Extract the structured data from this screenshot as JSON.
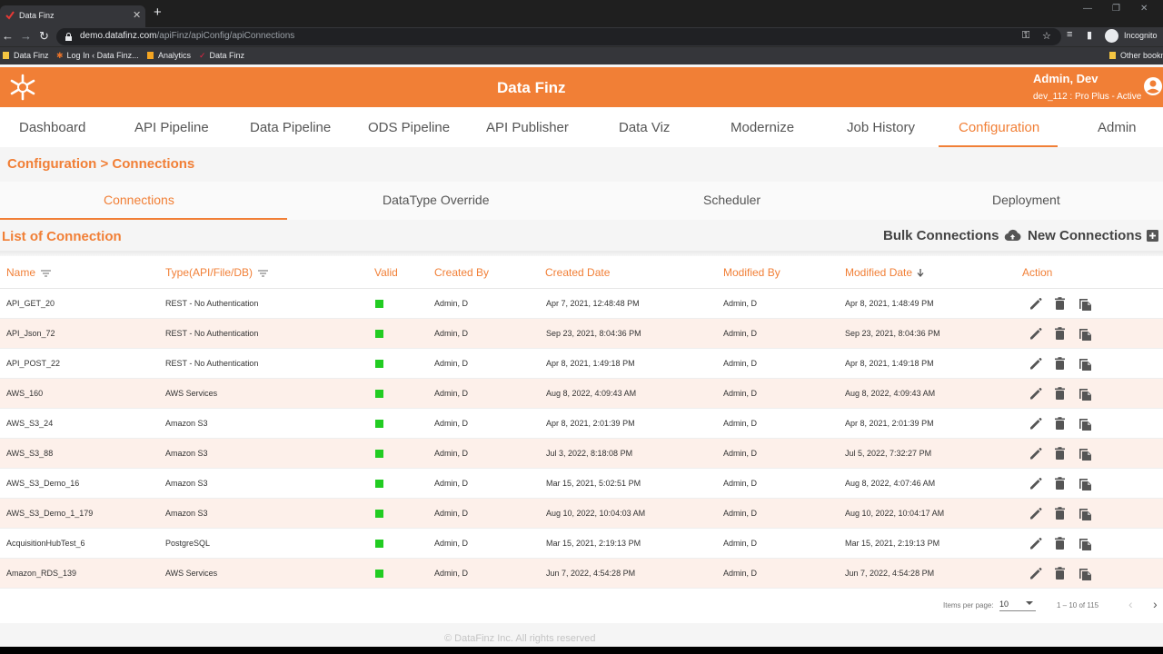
{
  "browser": {
    "tab_title": "Data Finz",
    "tab_close": "✕",
    "new_tab": "+",
    "url_host": "demo.datafinz.com",
    "url_path": "/apiFinz/apiConfig/apiConnections",
    "incognito_label": "Incognito",
    "bookmarks": [
      "Data Finz",
      "Log In ‹ Data Finz...",
      "Analytics",
      "Data Finz"
    ],
    "other_bookmarks": "Other bookm"
  },
  "header": {
    "title": "Data Finz",
    "user_name": "Admin, Dev",
    "user_plan": "dev_112 : Pro Plus - Active",
    "accent_color": "#f17f36"
  },
  "nav": {
    "items": [
      "Dashboard",
      "API Pipeline",
      "Data Pipeline",
      "ODS Pipeline",
      "API Publisher",
      "Data Viz",
      "Modernize",
      "Job History",
      "Configuration",
      "Admin"
    ],
    "active": "Configuration"
  },
  "breadcrumb": "Configuration > Connections",
  "sub_tabs": {
    "items": [
      "Connections",
      "DataType Override",
      "Scheduler",
      "Deployment"
    ],
    "active": "Connections"
  },
  "list": {
    "title": "List of Connection",
    "bulk_label": "Bulk Connections",
    "new_label": "New Connections"
  },
  "table": {
    "headers": [
      "Name",
      "Type(API/File/DB)",
      "Valid",
      "Created By",
      "Created Date",
      "Modified By",
      "Modified Date",
      "Action"
    ],
    "rows": [
      {
        "name": "API_GET_20",
        "type": "REST - No Authentication",
        "valid": true,
        "created_by": "Admin, D",
        "created_date": "Apr 7, 2021, 12:48:48 PM",
        "modified_by": "Admin, D",
        "modified_date": "Apr 8, 2021, 1:48:49 PM"
      },
      {
        "name": "API_Json_72",
        "type": "REST - No Authentication",
        "valid": true,
        "created_by": "Admin, D",
        "created_date": "Sep 23, 2021, 8:04:36 PM",
        "modified_by": "Admin, D",
        "modified_date": "Sep 23, 2021, 8:04:36 PM"
      },
      {
        "name": "API_POST_22",
        "type": "REST - No Authentication",
        "valid": true,
        "created_by": "Admin, D",
        "created_date": "Apr 8, 2021, 1:49:18 PM",
        "modified_by": "Admin, D",
        "modified_date": "Apr 8, 2021, 1:49:18 PM"
      },
      {
        "name": "AWS_160",
        "type": "AWS Services",
        "valid": true,
        "created_by": "Admin, D",
        "created_date": "Aug 8, 2022, 4:09:43 AM",
        "modified_by": "Admin, D",
        "modified_date": "Aug 8, 2022, 4:09:43 AM"
      },
      {
        "name": "AWS_S3_24",
        "type": "Amazon S3",
        "valid": true,
        "created_by": "Admin, D",
        "created_date": "Apr 8, 2021, 2:01:39 PM",
        "modified_by": "Admin, D",
        "modified_date": "Apr 8, 2021, 2:01:39 PM"
      },
      {
        "name": "AWS_S3_88",
        "type": "Amazon S3",
        "valid": true,
        "created_by": "Admin, D",
        "created_date": "Jul 3, 2022, 8:18:08 PM",
        "modified_by": "Admin, D",
        "modified_date": "Jul 5, 2022, 7:32:27 PM"
      },
      {
        "name": "AWS_S3_Demo_16",
        "type": "Amazon S3",
        "valid": true,
        "created_by": "Admin, D",
        "created_date": "Mar 15, 2021, 5:02:51 PM",
        "modified_by": "Admin, D",
        "modified_date": "Aug 8, 2022, 4:07:46 AM"
      },
      {
        "name": "AWS_S3_Demo_1_179",
        "type": "Amazon S3",
        "valid": true,
        "created_by": "Admin, D",
        "created_date": "Aug 10, 2022, 10:04:03 AM",
        "modified_by": "Admin, D",
        "modified_date": "Aug 10, 2022, 10:04:17 AM"
      },
      {
        "name": "AcquisitionHubTest_6",
        "type": "PostgreSQL",
        "valid": true,
        "created_by": "Admin, D",
        "created_date": "Mar 15, 2021, 2:19:13 PM",
        "modified_by": "Admin, D",
        "modified_date": "Mar 15, 2021, 2:19:13 PM"
      },
      {
        "name": "Amazon_RDS_139",
        "type": "AWS Services",
        "valid": true,
        "created_by": "Admin, D",
        "created_date": "Jun 7, 2022, 4:54:28 PM",
        "modified_by": "Admin, D",
        "modified_date": "Jun 7, 2022, 4:54:28 PM"
      }
    ],
    "valid_color": "#22cc22"
  },
  "pager": {
    "items_per_page_label": "Items per page:",
    "items_per_page": "10",
    "range": "1 – 10 of 115",
    "prev": "‹",
    "next": "›"
  },
  "footer": "© DataFinz Inc. All rights reserved"
}
